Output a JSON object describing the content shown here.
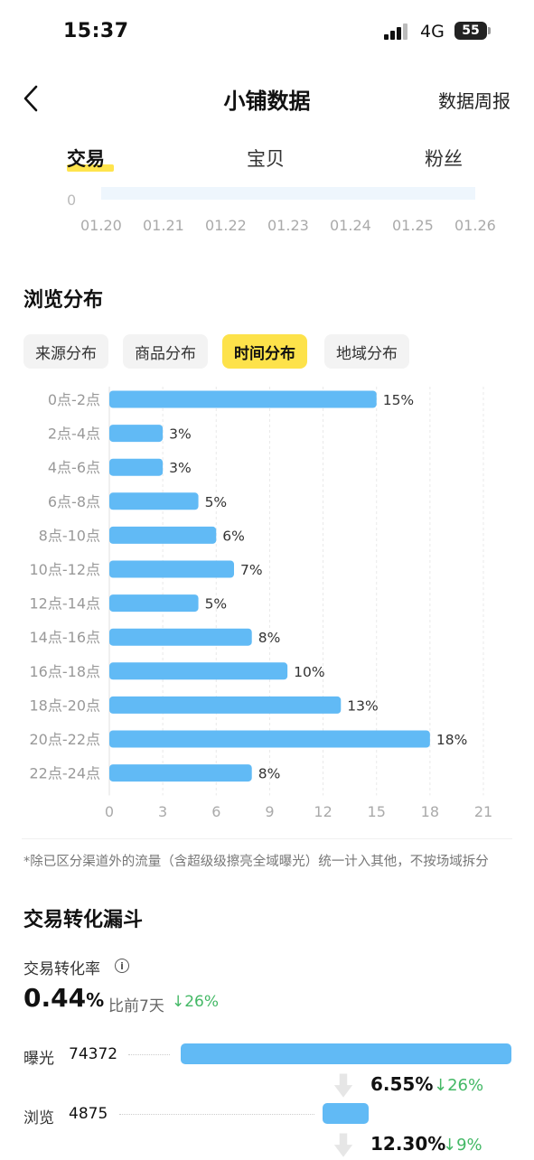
{
  "status": {
    "time": "15:37",
    "network": "4G",
    "battery": "55"
  },
  "nav": {
    "title": "小铺数据",
    "right_link": "数据周报"
  },
  "tabs": [
    {
      "label": "交易"
    },
    {
      "label": "宝贝"
    },
    {
      "label": "粉丝"
    }
  ],
  "trend": {
    "zero_label": "0",
    "dates": [
      "01.20",
      "01.21",
      "01.22",
      "01.23",
      "01.24",
      "01.25",
      "01.26"
    ]
  },
  "browse": {
    "section_title": "浏览分布",
    "tabs": [
      "来源分布",
      "商品分布",
      "时间分布",
      "地域分布"
    ],
    "active_tab": "时间分布",
    "note": "*除已区分渠道外的流量（含超级级擦亮全域曝光）统一计入其他，不按场域拆分"
  },
  "chart_data": {
    "type": "bar",
    "orientation": "horizontal",
    "categories": [
      "0点-2点",
      "2点-4点",
      "4点-6点",
      "6点-8点",
      "8点-10点",
      "10点-12点",
      "12点-14点",
      "14点-16点",
      "16点-18点",
      "18点-20点",
      "20点-22点",
      "22点-24点"
    ],
    "values": [
      15,
      3,
      3,
      5,
      6,
      7,
      5,
      8,
      10,
      13,
      18,
      8
    ],
    "value_labels": [
      "15%",
      "3%",
      "3%",
      "5%",
      "6%",
      "7%",
      "5%",
      "8%",
      "10%",
      "13%",
      "18%",
      "8%"
    ],
    "xlim": [
      0,
      21
    ],
    "x_ticks": [
      "0",
      "3",
      "6",
      "9",
      "12",
      "15",
      "18",
      "21"
    ],
    "bar_color": "#61baf5",
    "grid": true
  },
  "funnel": {
    "section_title": "交易转化漏斗",
    "rate_label": "交易转化率",
    "rate_value": "0.44",
    "rate_unit": "%",
    "compare_text": "比前7天",
    "compare_change": "↓26%",
    "stages": [
      {
        "label": "曝光",
        "value": "74372",
        "share": 1.0
      },
      {
        "label": "浏览",
        "value": "4875",
        "share": 0.1385
      }
    ],
    "steps": [
      {
        "rate": "6.55%",
        "change": "↓26%"
      },
      {
        "rate": "12.30%",
        "change": "↓9%"
      }
    ],
    "accent_green": "#43b865",
    "bar_color": "#61baf5"
  }
}
